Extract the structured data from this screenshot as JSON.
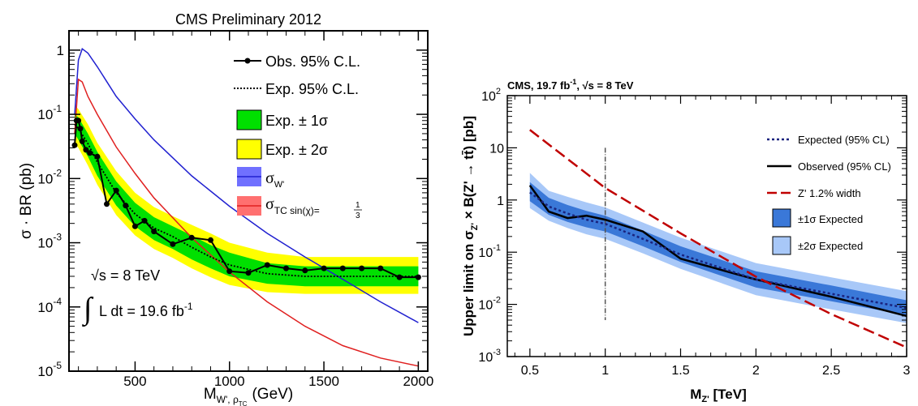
{
  "chart_data": [
    {
      "type": "line",
      "title": "CMS Preliminary 2012",
      "xlabel": "M",
      "xlabel_sub": "W', ρ",
      "xlabel_subsub": "TC",
      "xlabel_unit": "(GeV)",
      "ylabel": "σ · BR (pb)",
      "yscale": "log",
      "xlim": [
        150,
        2050
      ],
      "ylim": [
        1e-05,
        2
      ],
      "x_ticks": [
        500,
        1000,
        1500,
        2000
      ],
      "y_ticks": [
        {
          "value": 1,
          "base": "1",
          "exp": ""
        },
        {
          "value": 0.1,
          "base": "10",
          "exp": "-1"
        },
        {
          "value": 0.01,
          "base": "10",
          "exp": "-2"
        },
        {
          "value": 0.001,
          "base": "10",
          "exp": "-3"
        },
        {
          "value": 0.0001,
          "base": "10",
          "exp": "-4"
        },
        {
          "value": 1e-05,
          "base": "10",
          "exp": "-5"
        }
      ],
      "annotations": {
        "energy": "√s = 8 TeV",
        "lumi_prefix": "L dt = 19.6 fb",
        "lumi_exp": "-1"
      },
      "legend": {
        "placement": "top-right",
        "observed": "Obs. 95% C.L.",
        "expected": "Exp. 95% C.L.",
        "band1": "Exp. ± 1σ",
        "band2": "Exp. ± 2σ",
        "wprime": "σ",
        "wprime_sub": "W'",
        "tc": "σ",
        "tc_sub": "TC sin(χ)=",
        "tc_frac_num": "1",
        "tc_frac_den": "3"
      },
      "series": [
        {
          "key": "wprime",
          "color": "#2020d0",
          "x": [
            180,
            200,
            220,
            250,
            300,
            400,
            500,
            600,
            800,
            1000,
            1200,
            1400,
            1600,
            1800,
            2000
          ],
          "y": [
            0.1,
            0.7,
            1.05,
            0.9,
            0.55,
            0.19,
            0.085,
            0.04,
            0.011,
            0.0037,
            0.0014,
            0.0006,
            0.00027,
            0.00012,
            5.7e-05
          ]
        },
        {
          "key": "tc",
          "color": "#e02020",
          "x": [
            180,
            200,
            220,
            250,
            300,
            400,
            500,
            600,
            800,
            1000,
            1200,
            1400,
            1600,
            1800,
            2000
          ],
          "y": [
            0.05,
            0.35,
            0.32,
            0.19,
            0.1,
            0.031,
            0.012,
            0.005,
            0.0012,
            0.00035,
            0.00012,
            5e-05,
            2.5e-05,
            1.6e-05,
            1.2e-05
          ]
        },
        {
          "key": "observed",
          "color": "#000000",
          "x": [
            180,
            190,
            200,
            210,
            220,
            240,
            260,
            300,
            350,
            400,
            450,
            500,
            550,
            600,
            700,
            800,
            900,
            1000,
            1100,
            1200,
            1300,
            1400,
            1500,
            1600,
            1700,
            1800,
            1900,
            2000
          ],
          "y": [
            0.033,
            0.08,
            0.08,
            0.06,
            0.038,
            0.028,
            0.025,
            0.022,
            0.004,
            0.0065,
            0.0038,
            0.0018,
            0.0022,
            0.0015,
            0.00095,
            0.0012,
            0.0011,
            0.00036,
            0.00034,
            0.00045,
            0.0004,
            0.00037,
            0.0004,
            0.0004,
            0.0004,
            0.0004,
            0.00029,
            0.00029
          ]
        },
        {
          "key": "expected",
          "color": "#000000",
          "x": [
            180,
            200,
            250,
            300,
            400,
            500,
            600,
            700,
            800,
            900,
            1000,
            1200,
            1400,
            1600,
            1800,
            2000
          ],
          "y": [
            0.07,
            0.06,
            0.035,
            0.018,
            0.006,
            0.0028,
            0.0017,
            0.00125,
            0.00085,
            0.0006,
            0.00045,
            0.00033,
            0.0003,
            0.0003,
            0.0003,
            0.0003
          ]
        }
      ],
      "bands": {
        "x": [
          180,
          200,
          250,
          300,
          400,
          500,
          600,
          700,
          800,
          900,
          1000,
          1200,
          1400,
          1600,
          1800,
          2000
        ],
        "lo1": [
          0.05,
          0.04,
          0.022,
          0.011,
          0.0038,
          0.0018,
          0.0011,
          0.0008,
          0.00055,
          0.0004,
          0.0003,
          0.00023,
          0.00021,
          0.00021,
          0.00021,
          0.00021
        ],
        "hi1": [
          0.1,
          0.09,
          0.05,
          0.026,
          0.009,
          0.0042,
          0.0025,
          0.0018,
          0.0013,
          0.00092,
          0.0007,
          0.00048,
          0.00043,
          0.00043,
          0.00043,
          0.00043
        ],
        "lo2": [
          0.035,
          0.03,
          0.016,
          0.008,
          0.0027,
          0.0013,
          0.0008,
          0.00058,
          0.0004,
          0.00029,
          0.00022,
          0.00017,
          0.00016,
          0.00016,
          0.00016,
          0.00016
        ],
        "hi2": [
          0.14,
          0.12,
          0.07,
          0.036,
          0.013,
          0.006,
          0.0036,
          0.0026,
          0.0019,
          0.0014,
          0.001,
          0.0007,
          0.0006,
          0.0006,
          0.0006,
          0.0006
        ],
        "color1": "#00e000",
        "color2": "#ffff00"
      }
    },
    {
      "type": "line",
      "title_prefix": "CMS, 19.7 fb",
      "title_exp": "-1",
      "title_mid": ", √s = 8 TeV",
      "xlabel": "M",
      "xlabel_sub": "Z'",
      "xlabel_unit": " [TeV]",
      "ylabel": "Upper limit on σ",
      "ylabel_sub": "Z'",
      "ylabel_rest": " × B(Z' → tt̄) [pb]",
      "yscale": "log",
      "xlim": [
        0.35,
        3.0
      ],
      "ylim": [
        0.001,
        100
      ],
      "x_ticks": [
        0.5,
        1,
        1.5,
        2,
        2.5,
        3
      ],
      "x_tick_labels": [
        "0.5",
        "1",
        "1.5",
        "2",
        "2.5",
        "3"
      ],
      "y_ticks": [
        {
          "value": 100,
          "base": "10",
          "exp": "2"
        },
        {
          "value": 10,
          "base": "10",
          "exp": ""
        },
        {
          "value": 1,
          "base": "1",
          "exp": ""
        },
        {
          "value": 0.1,
          "base": "10",
          "exp": "-1"
        },
        {
          "value": 0.01,
          "base": "10",
          "exp": "-2"
        },
        {
          "value": 0.001,
          "base": "10",
          "exp": "-3"
        }
      ],
      "legend": {
        "placement": "top-right",
        "expected": "Expected (95% CL)",
        "observed": "Observed (95% CL)",
        "zprime": "Z' 1.2% width",
        "band1": "±1σ Expected",
        "band2": "±2σ Expected"
      },
      "series": [
        {
          "key": "observed",
          "color": "#000000",
          "x": [
            0.5,
            0.625,
            0.75,
            0.875,
            1.0,
            1.25,
            1.5,
            2.0,
            2.5,
            3.0
          ],
          "y": [
            1.9,
            0.6,
            0.45,
            0.5,
            0.42,
            0.25,
            0.075,
            0.03,
            0.014,
            0.006
          ]
        },
        {
          "key": "expected",
          "color": "#1a237e",
          "x": [
            0.5,
            0.625,
            0.75,
            0.875,
            1.0,
            1.25,
            1.5,
            2.0,
            2.5,
            3.0
          ],
          "y": [
            1.4,
            0.75,
            0.55,
            0.42,
            0.35,
            0.18,
            0.09,
            0.03,
            0.016,
            0.0085
          ]
        },
        {
          "key": "zprime",
          "color": "#c00000",
          "x": [
            0.5,
            1.0,
            1.5,
            2.0,
            2.5,
            3.0
          ],
          "y": [
            22,
            1.7,
            0.23,
            0.034,
            0.0065,
            0.0015
          ]
        }
      ],
      "bands": {
        "x": [
          0.5,
          0.625,
          0.75,
          0.875,
          1.0,
          1.25,
          1.5,
          2.0,
          2.5,
          3.0
        ],
        "lo1": [
          0.95,
          0.52,
          0.38,
          0.3,
          0.25,
          0.13,
          0.065,
          0.021,
          0.0115,
          0.0062
        ],
        "hi1": [
          2.2,
          1.1,
          0.8,
          0.62,
          0.5,
          0.26,
          0.13,
          0.043,
          0.023,
          0.012
        ],
        "lo2": [
          0.7,
          0.4,
          0.29,
          0.22,
          0.18,
          0.095,
          0.048,
          0.015,
          0.008,
          0.0044
        ],
        "hi2": [
          3.3,
          1.5,
          1.15,
          0.9,
          0.72,
          0.37,
          0.19,
          0.062,
          0.033,
          0.018
        ],
        "color1": "#3a78d8",
        "color2": "#a8c8f8"
      },
      "marker_line": {
        "x": 1.0,
        "y_from": 0.005,
        "y_to": 10
      }
    }
  ]
}
